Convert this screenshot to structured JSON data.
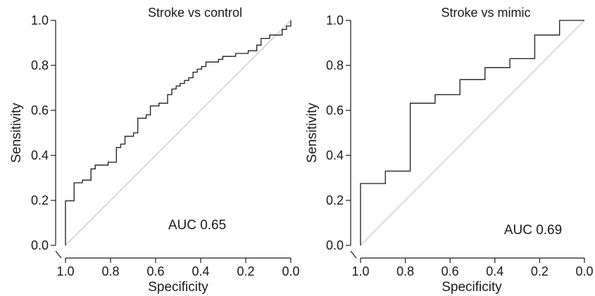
{
  "chart_data": [
    {
      "type": "line",
      "title": "Stroke vs control",
      "xlabel": "Specificity",
      "ylabel": "Sensitivity",
      "xlim": [
        1.0,
        0.0
      ],
      "ylim": [
        0.0,
        1.0
      ],
      "x_reversed": true,
      "xticks": [
        "1.0",
        "0.8",
        "0.6",
        "0.4",
        "0.2",
        "0.0"
      ],
      "yticks": [
        "0.0",
        "0.2",
        "0.4",
        "0.6",
        "0.8",
        "1.0"
      ],
      "annotation": "AUC 0.65",
      "reference_line": "diagonal",
      "curve_color": "#1a1a1a",
      "reference_color": "#bdbdbd",
      "series": [
        {
          "specificity": [
            1.0,
            1.0,
            0.962,
            0.962,
            0.925,
            0.925,
            0.887,
            0.887,
            0.868,
            0.868,
            0.811,
            0.811,
            0.774,
            0.774,
            0.755,
            0.755,
            0.736,
            0.736,
            0.698,
            0.698,
            0.679,
            0.679,
            0.642,
            0.642,
            0.623,
            0.623,
            0.585,
            0.585,
            0.547,
            0.547,
            0.528,
            0.528,
            0.509,
            0.509,
            0.491,
            0.491,
            0.472,
            0.472,
            0.453,
            0.453,
            0.434,
            0.434,
            0.415,
            0.415,
            0.396,
            0.396,
            0.377,
            0.377,
            0.321,
            0.321,
            0.302,
            0.302,
            0.245,
            0.245,
            0.189,
            0.189,
            0.151,
            0.151,
            0.132,
            0.132,
            0.094,
            0.094,
            0.038,
            0.038,
            0.019,
            0.019,
            0.0,
            0.0
          ],
          "sensitivity": [
            0.0,
            0.198,
            0.198,
            0.278,
            0.278,
            0.29,
            0.29,
            0.34,
            0.34,
            0.357,
            0.357,
            0.37,
            0.37,
            0.435,
            0.435,
            0.45,
            0.45,
            0.485,
            0.485,
            0.5,
            0.5,
            0.565,
            0.565,
            0.58,
            0.58,
            0.62,
            0.62,
            0.632,
            0.632,
            0.67,
            0.67,
            0.695,
            0.695,
            0.708,
            0.708,
            0.72,
            0.72,
            0.733,
            0.733,
            0.745,
            0.745,
            0.77,
            0.77,
            0.783,
            0.783,
            0.795,
            0.795,
            0.815,
            0.815,
            0.827,
            0.827,
            0.84,
            0.84,
            0.853,
            0.853,
            0.865,
            0.865,
            0.89,
            0.89,
            0.92,
            0.92,
            0.935,
            0.935,
            0.96,
            0.96,
            0.975,
            0.975,
            1.0
          ]
        }
      ]
    },
    {
      "type": "line",
      "title": "Stroke vs mimic",
      "xlabel": "Specificity",
      "ylabel": "Sensitivity",
      "xlim": [
        1.0,
        0.0
      ],
      "ylim": [
        0.0,
        1.0
      ],
      "x_reversed": true,
      "xticks": [
        "1.0",
        "0.8",
        "0.6",
        "0.4",
        "0.2",
        "0.0"
      ],
      "yticks": [
        "0.0",
        "0.2",
        "0.4",
        "0.6",
        "0.8",
        "1.0"
      ],
      "annotation": "AUC 0.69",
      "reference_line": "diagonal",
      "curve_color": "#1a1a1a",
      "reference_color": "#bdbdbd",
      "series": [
        {
          "specificity": [
            1.0,
            1.0,
            0.889,
            0.889,
            0.778,
            0.778,
            0.667,
            0.667,
            0.556,
            0.556,
            0.444,
            0.444,
            0.333,
            0.333,
            0.222,
            0.222,
            0.111,
            0.111,
            0.0
          ],
          "sensitivity": [
            0.0,
            0.275,
            0.275,
            0.33,
            0.33,
            0.632,
            0.632,
            0.67,
            0.67,
            0.737,
            0.737,
            0.79,
            0.79,
            0.83,
            0.83,
            0.935,
            0.935,
            1.0,
            1.0
          ]
        }
      ]
    }
  ]
}
